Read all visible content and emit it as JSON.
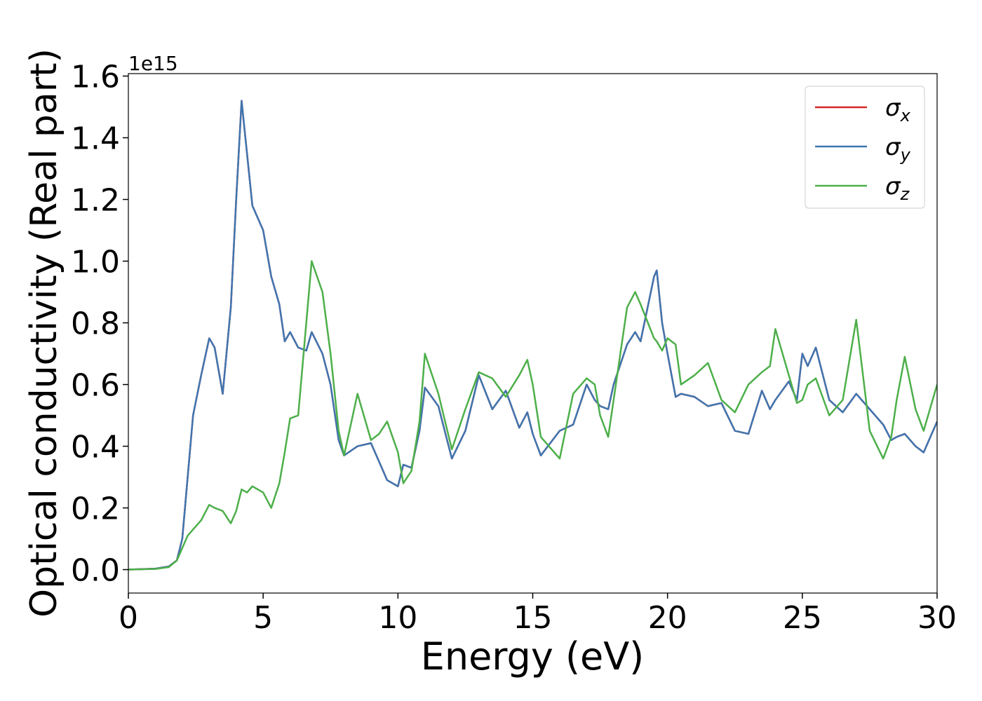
{
  "chart_data": {
    "type": "line",
    "xlabel": "Energy (eV)",
    "ylabel": "Optical conductivity (Real part)",
    "y_offset_label": "1e15",
    "legend": "upper right",
    "x": [
      0,
      1,
      1.5,
      1.8,
      2.0,
      2.2,
      2.4,
      2.7,
      3.0,
      3.2,
      3.5,
      3.8,
      4.0,
      4.2,
      4.4,
      4.6,
      5.0,
      5.3,
      5.6,
      5.8,
      6.0,
      6.3,
      6.6,
      6.8,
      7.2,
      7.5,
      7.8,
      8.0,
      8.5,
      9.0,
      9.3,
      9.6,
      10.0,
      10.2,
      10.5,
      10.8,
      11.0,
      11.5,
      12.0,
      12.5,
      13.0,
      13.5,
      14.0,
      14.5,
      14.8,
      15.0,
      15.3,
      16.0,
      16.5,
      17.0,
      17.3,
      17.5,
      17.8,
      18.0,
      18.5,
      18.8,
      19.0,
      19.5,
      19.6,
      19.8,
      20.0,
      20.3,
      20.5,
      21.0,
      21.5,
      22.0,
      22.5,
      23.0,
      23.5,
      23.8,
      24.0,
      24.5,
      24.8,
      25.0,
      25.2,
      25.5,
      26.0,
      26.5,
      27.0,
      27.5,
      28.0,
      28.3,
      28.5,
      28.8,
      29.2,
      29.5,
      30.0
    ],
    "series": [
      {
        "name": "σx",
        "color": "#d62728",
        "values": [
          0,
          0.003,
          0.01,
          0.03,
          0.1,
          0.3,
          0.5,
          0.63,
          0.75,
          0.72,
          0.57,
          0.85,
          1.2,
          1.52,
          1.35,
          1.18,
          1.1,
          0.95,
          0.86,
          0.74,
          0.77,
          0.72,
          0.71,
          0.77,
          0.7,
          0.6,
          0.42,
          0.37,
          0.4,
          0.41,
          0.35,
          0.29,
          0.27,
          0.34,
          0.33,
          0.45,
          0.59,
          0.53,
          0.36,
          0.45,
          0.63,
          0.52,
          0.58,
          0.46,
          0.51,
          0.44,
          0.37,
          0.45,
          0.47,
          0.6,
          0.55,
          0.53,
          0.52,
          0.6,
          0.73,
          0.77,
          0.74,
          0.95,
          0.97,
          0.8,
          0.7,
          0.56,
          0.57,
          0.56,
          0.53,
          0.54,
          0.45,
          0.44,
          0.58,
          0.52,
          0.55,
          0.61,
          0.55,
          0.7,
          0.66,
          0.72,
          0.55,
          0.51,
          0.57,
          0.52,
          0.47,
          0.42,
          0.43,
          0.44,
          0.4,
          0.38,
          0.48
        ]
      },
      {
        "name": "σy",
        "color": "#3f76b0",
        "values": [
          0,
          0.003,
          0.01,
          0.03,
          0.1,
          0.3,
          0.5,
          0.63,
          0.75,
          0.72,
          0.57,
          0.85,
          1.2,
          1.52,
          1.35,
          1.18,
          1.1,
          0.95,
          0.86,
          0.74,
          0.77,
          0.72,
          0.71,
          0.77,
          0.7,
          0.6,
          0.42,
          0.37,
          0.4,
          0.41,
          0.35,
          0.29,
          0.27,
          0.34,
          0.33,
          0.45,
          0.59,
          0.53,
          0.36,
          0.45,
          0.63,
          0.52,
          0.58,
          0.46,
          0.51,
          0.44,
          0.37,
          0.45,
          0.47,
          0.6,
          0.55,
          0.53,
          0.52,
          0.6,
          0.73,
          0.77,
          0.74,
          0.95,
          0.97,
          0.8,
          0.7,
          0.56,
          0.57,
          0.56,
          0.53,
          0.54,
          0.45,
          0.44,
          0.58,
          0.52,
          0.55,
          0.61,
          0.55,
          0.7,
          0.66,
          0.72,
          0.55,
          0.51,
          0.57,
          0.52,
          0.47,
          0.42,
          0.43,
          0.44,
          0.4,
          0.38,
          0.48
        ]
      },
      {
        "name": "σz",
        "color": "#4daf4a",
        "values": [
          0,
          0.002,
          0.008,
          0.03,
          0.07,
          0.11,
          0.13,
          0.16,
          0.21,
          0.2,
          0.19,
          0.15,
          0.19,
          0.26,
          0.25,
          0.27,
          0.25,
          0.2,
          0.28,
          0.38,
          0.49,
          0.5,
          0.8,
          1.0,
          0.9,
          0.7,
          0.45,
          0.37,
          0.57,
          0.42,
          0.44,
          0.48,
          0.38,
          0.28,
          0.32,
          0.48,
          0.7,
          0.57,
          0.39,
          0.52,
          0.64,
          0.62,
          0.56,
          0.63,
          0.68,
          0.6,
          0.43,
          0.36,
          0.57,
          0.62,
          0.6,
          0.5,
          0.43,
          0.55,
          0.85,
          0.9,
          0.86,
          0.75,
          0.74,
          0.71,
          0.75,
          0.73,
          0.6,
          0.63,
          0.67,
          0.55,
          0.51,
          0.6,
          0.64,
          0.66,
          0.78,
          0.63,
          0.54,
          0.55,
          0.6,
          0.62,
          0.5,
          0.55,
          0.81,
          0.45,
          0.36,
          0.43,
          0.55,
          0.69,
          0.52,
          0.45,
          0.6
        ]
      }
    ],
    "xlim": [
      0,
      30
    ],
    "xticks": [
      0,
      5,
      10,
      15,
      20,
      25,
      30
    ],
    "ylim": [
      -0.076,
      1.608
    ],
    "yticks": [
      {
        "value": 0,
        "label": "0.0"
      },
      0.2,
      0.4,
      0.6,
      0.8,
      {
        "value": 1,
        "label": "1.0"
      },
      1.2,
      1.4,
      1.6
    ]
  }
}
